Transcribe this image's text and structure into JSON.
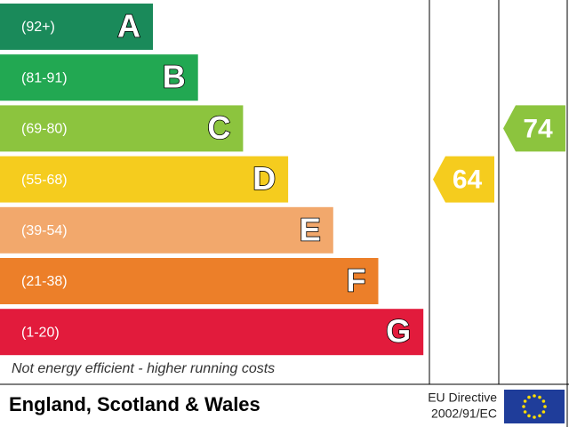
{
  "chart_data": {
    "type": "energy-rating",
    "bands": [
      {
        "range": "(92+)",
        "letter": "A",
        "color": "#1a8a5a"
      },
      {
        "range": "(81-91)",
        "letter": "B",
        "color": "#22a852"
      },
      {
        "range": "(69-80)",
        "letter": "C",
        "color": "#8cc43e"
      },
      {
        "range": "(55-68)",
        "letter": "D",
        "color": "#f5cc1e"
      },
      {
        "range": "(39-54)",
        "letter": "E",
        "color": "#f2a86c"
      },
      {
        "range": "(21-38)",
        "letter": "F",
        "color": "#ec7f29"
      },
      {
        "range": "(1-20)",
        "letter": "G",
        "color": "#e21b3c"
      }
    ],
    "current": {
      "value": 64,
      "color": "#f5cc1e"
    },
    "potential": {
      "value": 74,
      "color": "#8cc43e"
    },
    "bottom_note": "Not energy efficient - higher running costs"
  },
  "footer": {
    "region": "England, Scotland & Wales",
    "directive": "EU Directive",
    "directive_code": "2002/91/EC"
  }
}
